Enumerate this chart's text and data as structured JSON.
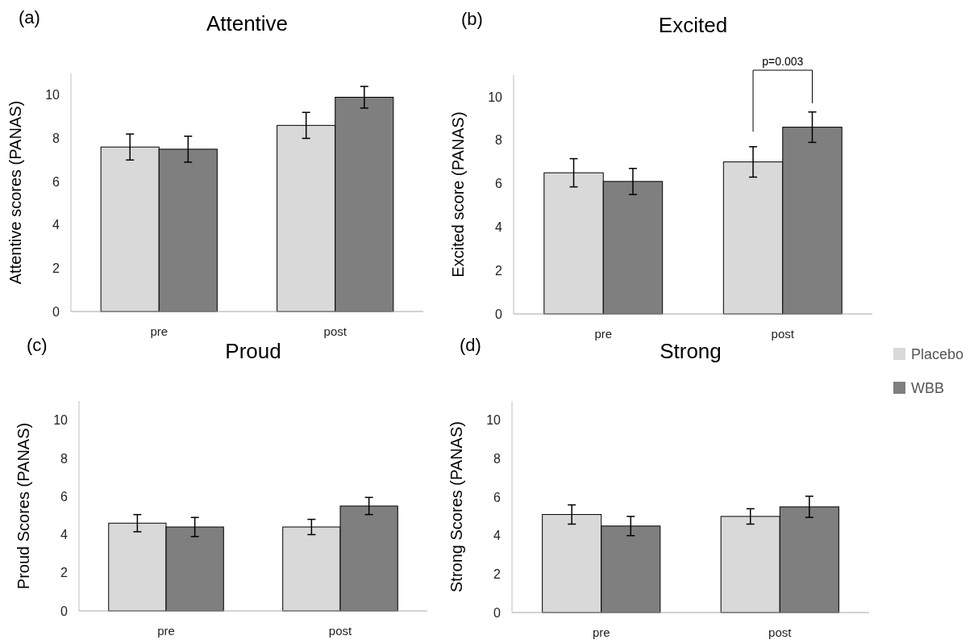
{
  "chart_data": [
    {
      "type": "bar",
      "title": "Attentive",
      "ylabel": "Attentive scores (PANAS)",
      "categories": [
        "pre",
        "post"
      ],
      "annotations": [
        "(a)"
      ],
      "ylim": [
        0,
        11
      ],
      "yticks": [
        0,
        2,
        4,
        6,
        8,
        10
      ],
      "grid": false,
      "series": [
        {
          "color": "#d9d9d9",
          "values": [
            7.6,
            8.6
          ],
          "errors": [
            0.6,
            0.6
          ]
        },
        {
          "color": "#7f7f7f",
          "values": [
            7.5,
            9.9
          ],
          "errors": [
            0.6,
            0.5
          ]
        }
      ]
    },
    {
      "type": "bar",
      "title": "Excited",
      "ylabel": "Excited score (PANAS)",
      "categories": [
        "pre",
        "post"
      ],
      "annotations": [
        "(b)",
        "p=0.003"
      ],
      "ylim": [
        0,
        11
      ],
      "yticks": [
        0,
        2,
        4,
        6,
        8,
        10
      ],
      "grid": false,
      "series": [
        {
          "color": "#d9d9d9",
          "values": [
            6.5,
            7.0
          ],
          "errors": [
            0.65,
            0.7
          ]
        },
        {
          "color": "#7f7f7f",
          "values": [
            6.1,
            8.6
          ],
          "errors": [
            0.6,
            0.7
          ]
        }
      ]
    },
    {
      "type": "bar",
      "title": "Proud",
      "ylabel": "Proud Scores (PANAS)",
      "categories": [
        "pre",
        "post"
      ],
      "annotations": [
        "(c)"
      ],
      "ylim": [
        0,
        11
      ],
      "yticks": [
        0,
        2,
        4,
        6,
        8,
        10
      ],
      "grid": false,
      "series": [
        {
          "color": "#d9d9d9",
          "values": [
            4.6,
            4.4
          ],
          "errors": [
            0.45,
            0.4
          ]
        },
        {
          "color": "#7f7f7f",
          "values": [
            4.4,
            5.5
          ],
          "errors": [
            0.5,
            0.45
          ]
        }
      ]
    },
    {
      "type": "bar",
      "title": "Strong",
      "ylabel": "Strong Scores (PANAS)",
      "categories": [
        "pre",
        "post"
      ],
      "annotations": [
        "(d)"
      ],
      "ylim": [
        0,
        11
      ],
      "yticks": [
        0,
        2,
        4,
        6,
        8,
        10
      ],
      "grid": false,
      "legend": "right",
      "series": [
        {
          "name": "Placebo",
          "color": "#d9d9d9",
          "values": [
            5.1,
            5.0
          ],
          "errors": [
            0.5,
            0.4
          ]
        },
        {
          "name": "WBB",
          "color": "#7f7f7f",
          "values": [
            4.5,
            5.5
          ],
          "errors": [
            0.5,
            0.55
          ]
        }
      ]
    }
  ]
}
